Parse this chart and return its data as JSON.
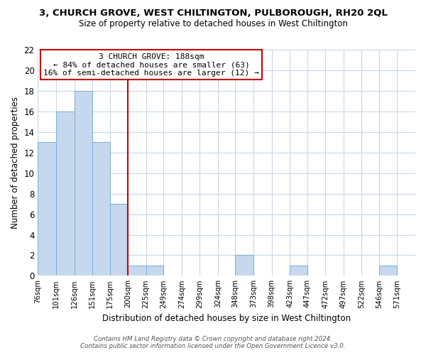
{
  "title": "3, CHURCH GROVE, WEST CHILTINGTON, PULBOROUGH, RH20 2QL",
  "subtitle": "Size of property relative to detached houses in West Chiltington",
  "xlabel": "Distribution of detached houses by size in West Chiltington",
  "ylabel": "Number of detached properties",
  "bar_labels": [
    "76sqm",
    "101sqm",
    "126sqm",
    "151sqm",
    "175sqm",
    "200sqm",
    "225sqm",
    "249sqm",
    "274sqm",
    "299sqm",
    "324sqm",
    "348sqm",
    "373sqm",
    "398sqm",
    "423sqm",
    "447sqm",
    "472sqm",
    "497sqm",
    "522sqm",
    "546sqm",
    "571sqm"
  ],
  "bar_values": [
    13,
    16,
    18,
    13,
    7,
    1,
    1,
    0,
    0,
    0,
    0,
    2,
    0,
    0,
    1,
    0,
    0,
    0,
    0,
    1,
    0
  ],
  "bar_color": "#c5d8ed",
  "bar_edge_color": "#7bafd4",
  "vline_x_index": 5,
  "bin_edges": [
    76,
    101,
    126,
    151,
    175,
    200,
    225,
    249,
    274,
    299,
    324,
    348,
    373,
    398,
    423,
    447,
    472,
    497,
    522,
    546,
    571,
    596
  ],
  "annotation_title": "3 CHURCH GROVE: 188sqm",
  "annotation_line1": "← 84% of detached houses are smaller (63)",
  "annotation_line2": "16% of semi-detached houses are larger (12) →",
  "annotation_box_color": "#ffffff",
  "annotation_box_edge": "#cc0000",
  "vline_color": "#cc0000",
  "ylim": [
    0,
    22
  ],
  "yticks": [
    0,
    2,
    4,
    6,
    8,
    10,
    12,
    14,
    16,
    18,
    20,
    22
  ],
  "footer1": "Contains HM Land Registry data © Crown copyright and database right 2024.",
  "footer2": "Contains public sector information licensed under the Open Government Licence v3.0.",
  "bg_color": "#ffffff",
  "grid_color": "#c8d8e8"
}
